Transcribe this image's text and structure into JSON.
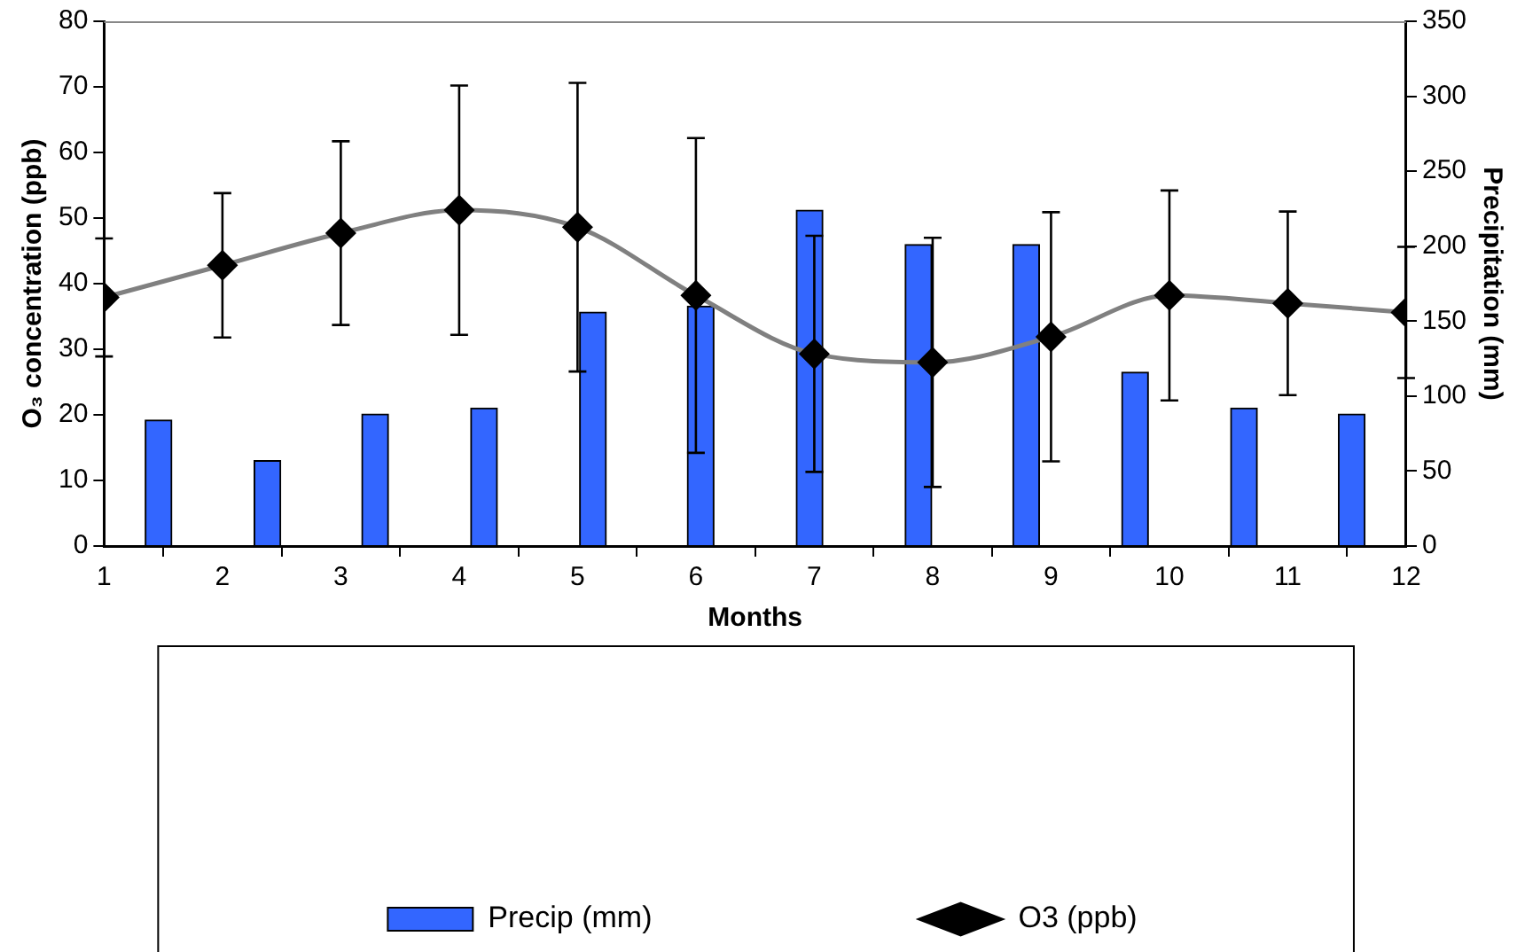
{
  "chart_data": {
    "type": "bar",
    "xlabel": "Months",
    "ylabel": "O₃ concentration (ppb)",
    "y2label": "Precipitation (mm)",
    "xlim": [
      1,
      12
    ],
    "xticks": [
      1,
      2,
      3,
      4,
      5,
      6,
      7,
      8,
      9,
      10,
      11,
      12
    ],
    "ylim": [
      0,
      80
    ],
    "yticks": [
      0,
      10,
      20,
      30,
      40,
      50,
      60,
      70,
      80
    ],
    "y2lim": [
      0,
      350
    ],
    "y2ticks": [
      0,
      50,
      100,
      150,
      200,
      250,
      300,
      350
    ],
    "grid": false,
    "legend": "bottom",
    "series": [
      {
        "name": "Precip (mm)",
        "axis": "y2",
        "color": "#3366ff",
        "x": [
          1.46,
          2.38,
          3.29,
          4.21,
          5.13,
          6.04,
          6.96,
          7.88,
          8.79,
          9.71,
          10.63,
          11.54
        ],
        "values": [
          84,
          57,
          88,
          92,
          156,
          160,
          224,
          201,
          201,
          116,
          92,
          88
        ]
      },
      {
        "name": "O3 (ppb)",
        "type": "line",
        "axis": "y",
        "color": "#808080",
        "marker": "diamond",
        "x": [
          1,
          2,
          3,
          4,
          5,
          6,
          7,
          8,
          9,
          10,
          11,
          12
        ],
        "values": [
          37.9,
          42.8,
          47.7,
          51.2,
          48.6,
          38.2,
          29.3,
          28.0,
          31.9,
          38.2,
          37.0,
          35.6
        ],
        "errors": [
          9,
          11,
          14,
          19,
          22,
          24,
          18,
          19,
          19,
          16,
          14,
          10
        ]
      }
    ]
  }
}
